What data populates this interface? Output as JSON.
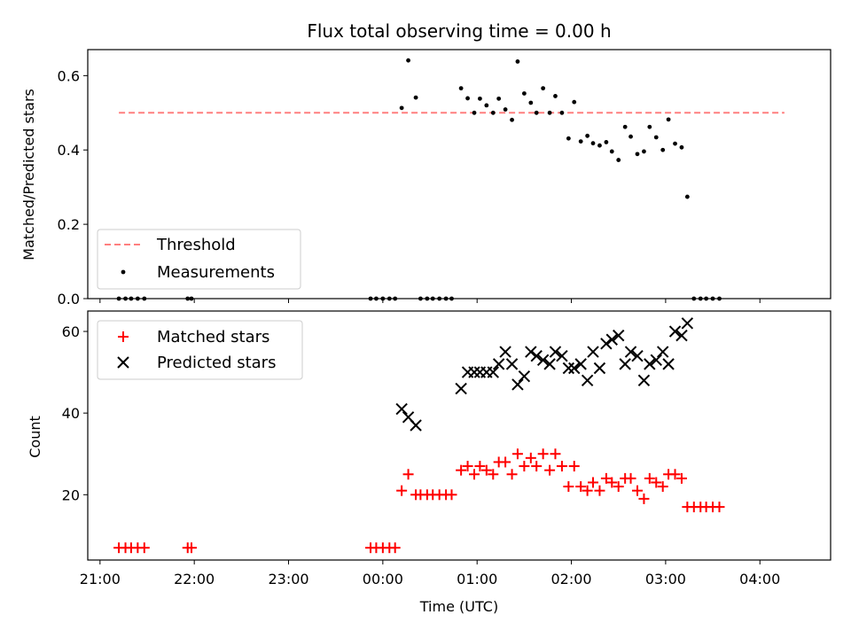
{
  "figure": {
    "title": "Flux total observing time = 0.00 h",
    "xlabel": "Time (UTC)",
    "x_tick_labels": [
      "21:00",
      "22:00",
      "23:00",
      "00:00",
      "01:00",
      "02:00",
      "03:00",
      "04:00"
    ]
  },
  "chart_data": [
    {
      "type": "scatter",
      "panel": "top",
      "ylabel": "Matched/Predicted stars",
      "ylim": [
        0,
        0.67
      ],
      "y_ticks": [
        "0.0",
        "0.2",
        "0.4",
        "0.6"
      ],
      "x_unit": "hours since 21:00 UTC",
      "xlim": [
        -0.13,
        7.75
      ],
      "legend_position": "lower-left",
      "threshold": {
        "name": "Threshold",
        "value": 0.5,
        "x_range": [
          0.2,
          7.26
        ],
        "color": "#ff7f7f"
      },
      "measurements": {
        "name": "Measurements",
        "color": "#000000",
        "points": [
          [
            0.2,
            0
          ],
          [
            0.27,
            0
          ],
          [
            0.33,
            0
          ],
          [
            0.4,
            0
          ],
          [
            0.47,
            0
          ],
          [
            0.93,
            0
          ],
          [
            0.97,
            0
          ],
          [
            2.87,
            0
          ],
          [
            2.93,
            0
          ],
          [
            3.0,
            0
          ],
          [
            3.07,
            0
          ],
          [
            3.13,
            0
          ],
          [
            3.2,
            0.513
          ],
          [
            3.27,
            0.641
          ],
          [
            3.35,
            0.541
          ],
          [
            3.4,
            0
          ],
          [
            3.47,
            0
          ],
          [
            3.53,
            0
          ],
          [
            3.6,
            0
          ],
          [
            3.67,
            0
          ],
          [
            3.73,
            0
          ],
          [
            3.83,
            0.566
          ],
          [
            3.9,
            0.539
          ],
          [
            3.97,
            0.5
          ],
          [
            4.03,
            0.538
          ],
          [
            4.1,
            0.52
          ],
          [
            4.17,
            0.5
          ],
          [
            4.23,
            0.538
          ],
          [
            4.3,
            0.509
          ],
          [
            4.37,
            0.481
          ],
          [
            4.43,
            0.638
          ],
          [
            4.5,
            0.552
          ],
          [
            4.57,
            0.527
          ],
          [
            4.63,
            0.5
          ],
          [
            4.7,
            0.566
          ],
          [
            4.77,
            0.5
          ],
          [
            4.83,
            0.545
          ],
          [
            4.9,
            0.5
          ],
          [
            4.97,
            0.431
          ],
          [
            5.03,
            0.529
          ],
          [
            5.1,
            0.423
          ],
          [
            5.17,
            0.438
          ],
          [
            5.23,
            0.418
          ],
          [
            5.3,
            0.412
          ],
          [
            5.37,
            0.421
          ],
          [
            5.43,
            0.396
          ],
          [
            5.5,
            0.373
          ],
          [
            5.57,
            0.462
          ],
          [
            5.63,
            0.436
          ],
          [
            5.7,
            0.389
          ],
          [
            5.77,
            0.396
          ],
          [
            5.83,
            0.462
          ],
          [
            5.9,
            0.434
          ],
          [
            5.97,
            0.4
          ],
          [
            6.03,
            0.482
          ],
          [
            6.1,
            0.417
          ],
          [
            6.17,
            0.407
          ],
          [
            6.23,
            0.274
          ],
          [
            6.3,
            0
          ],
          [
            6.37,
            0
          ],
          [
            6.43,
            0
          ],
          [
            6.5,
            0
          ],
          [
            6.57,
            0
          ]
        ]
      }
    },
    {
      "type": "scatter",
      "panel": "bottom",
      "ylabel": "Count",
      "ylim": [
        4,
        65
      ],
      "y_ticks": [
        "20",
        "40",
        "60"
      ],
      "x_unit": "hours since 21:00 UTC",
      "xlim": [
        -0.13,
        7.75
      ],
      "legend_position": "upper-left",
      "series": [
        {
          "name": "Matched stars",
          "marker": "+",
          "color": "#ff0000",
          "points": [
            [
              0.2,
              7
            ],
            [
              0.27,
              7
            ],
            [
              0.33,
              7
            ],
            [
              0.4,
              7
            ],
            [
              0.47,
              7
            ],
            [
              0.93,
              7
            ],
            [
              0.97,
              7
            ],
            [
              2.87,
              7
            ],
            [
              2.93,
              7
            ],
            [
              3.0,
              7
            ],
            [
              3.07,
              7
            ],
            [
              3.13,
              7
            ],
            [
              3.2,
              21
            ],
            [
              3.27,
              25
            ],
            [
              3.35,
              20
            ],
            [
              3.4,
              20
            ],
            [
              3.47,
              20
            ],
            [
              3.53,
              20
            ],
            [
              3.6,
              20
            ],
            [
              3.67,
              20
            ],
            [
              3.73,
              20
            ],
            [
              3.83,
              26
            ],
            [
              3.9,
              27
            ],
            [
              3.97,
              25
            ],
            [
              4.03,
              27
            ],
            [
              4.1,
              26
            ],
            [
              4.17,
              25
            ],
            [
              4.23,
              28
            ],
            [
              4.3,
              28
            ],
            [
              4.37,
              25
            ],
            [
              4.43,
              30
            ],
            [
              4.5,
              27
            ],
            [
              4.57,
              29
            ],
            [
              4.63,
              27
            ],
            [
              4.7,
              30
            ],
            [
              4.77,
              26
            ],
            [
              4.83,
              30
            ],
            [
              4.9,
              27
            ],
            [
              4.97,
              22
            ],
            [
              5.03,
              27
            ],
            [
              5.1,
              22
            ],
            [
              5.17,
              21
            ],
            [
              5.23,
              23
            ],
            [
              5.3,
              21
            ],
            [
              5.37,
              24
            ],
            [
              5.43,
              23
            ],
            [
              5.5,
              22
            ],
            [
              5.57,
              24
            ],
            [
              5.63,
              24
            ],
            [
              5.7,
              21
            ],
            [
              5.77,
              19
            ],
            [
              5.83,
              24
            ],
            [
              5.9,
              23
            ],
            [
              5.97,
              22
            ],
            [
              6.03,
              25
            ],
            [
              6.1,
              25
            ],
            [
              6.17,
              24
            ],
            [
              6.23,
              17
            ],
            [
              6.3,
              17
            ],
            [
              6.37,
              17
            ],
            [
              6.43,
              17
            ],
            [
              6.5,
              17
            ],
            [
              6.57,
              17
            ]
          ]
        },
        {
          "name": "Predicted stars",
          "marker": "x",
          "color": "#000000",
          "points": [
            [
              3.2,
              41
            ],
            [
              3.27,
              39
            ],
            [
              3.35,
              37
            ],
            [
              3.83,
              46
            ],
            [
              3.9,
              50
            ],
            [
              3.97,
              50
            ],
            [
              4.03,
              50
            ],
            [
              4.1,
              50
            ],
            [
              4.17,
              50
            ],
            [
              4.23,
              52
            ],
            [
              4.3,
              55
            ],
            [
              4.37,
              52
            ],
            [
              4.43,
              47
            ],
            [
              4.5,
              49
            ],
            [
              4.57,
              55
            ],
            [
              4.63,
              54
            ],
            [
              4.7,
              53
            ],
            [
              4.77,
              52
            ],
            [
              4.83,
              55
            ],
            [
              4.9,
              54
            ],
            [
              4.97,
              51
            ],
            [
              5.03,
              51
            ],
            [
              5.1,
              52
            ],
            [
              5.17,
              48
            ],
            [
              5.23,
              55
            ],
            [
              5.3,
              51
            ],
            [
              5.37,
              57
            ],
            [
              5.43,
              58
            ],
            [
              5.5,
              59
            ],
            [
              5.57,
              52
            ],
            [
              5.63,
              55
            ],
            [
              5.7,
              54
            ],
            [
              5.77,
              48
            ],
            [
              5.83,
              52
            ],
            [
              5.9,
              53
            ],
            [
              5.97,
              55
            ],
            [
              6.03,
              52
            ],
            [
              6.1,
              60
            ],
            [
              6.17,
              59
            ],
            [
              6.23,
              62
            ]
          ]
        }
      ]
    }
  ]
}
